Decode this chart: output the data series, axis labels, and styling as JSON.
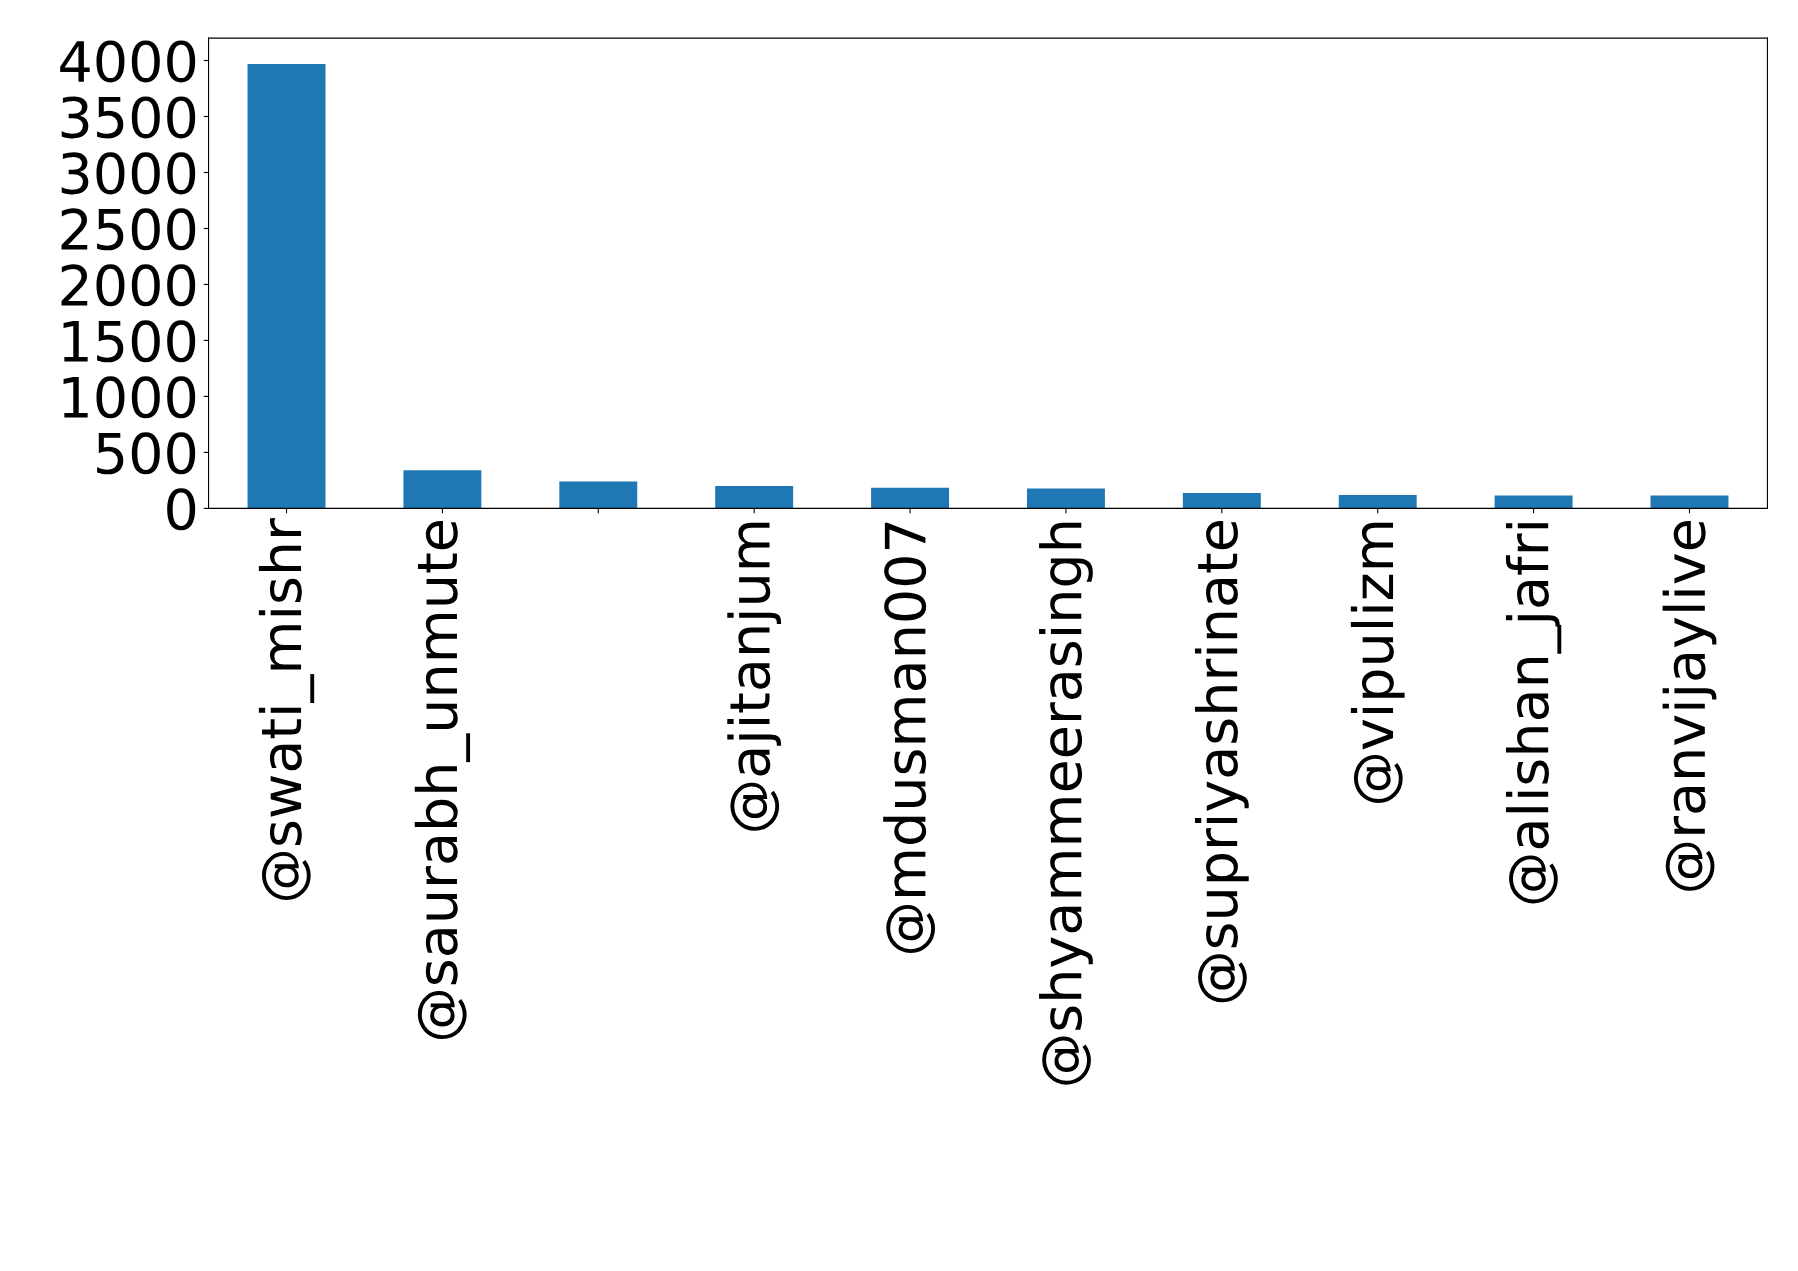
{
  "chart_data": {
    "type": "bar",
    "categories": [
      "@swati_mishr",
      "@saurabh_unmute",
      null,
      "@ajitanjum",
      "@mdusman007",
      "@shyammeerasingh",
      "@supriyashrinate",
      "@vipulizm",
      "@alishan_jafri",
      "@ranvijaylive"
    ],
    "values": [
      3970,
      340,
      240,
      200,
      185,
      178,
      138,
      120,
      115,
      115
    ],
    "color": "#1f77b4",
    "ylim": [
      0,
      4200
    ],
    "yticks": [
      0,
      500,
      1000,
      1500,
      2000,
      2500,
      3000,
      3500,
      4000
    ],
    "grid": false
  }
}
